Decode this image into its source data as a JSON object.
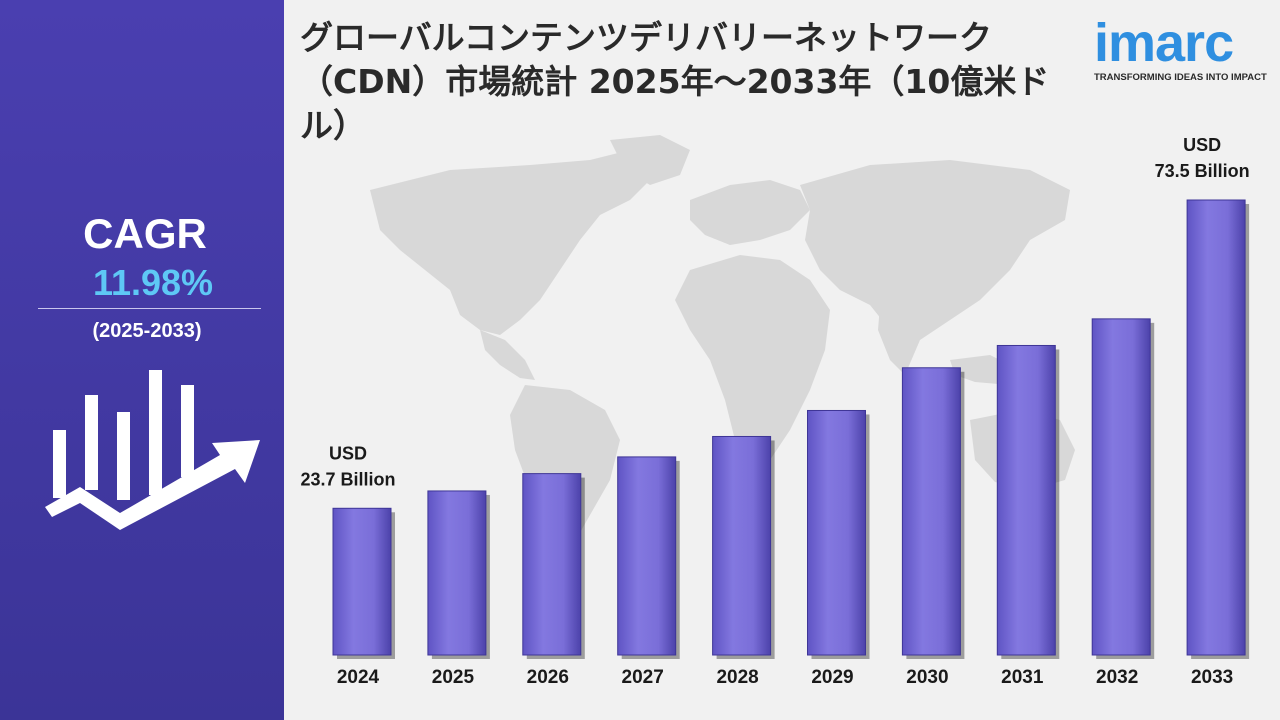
{
  "title": "グローバルコンテンツデリバリーネットワーク（CDN）市場統計 2025年～2033年（10億米ドル）",
  "logo": {
    "text": "imarc",
    "tagline": "TRANSFORMING IDEAS INTO IMPACT"
  },
  "sidebar": {
    "cagr_label": "CAGR",
    "cagr_value": "11.98%",
    "period": "(2025-2033)",
    "icon": "growth-chart-arrow-icon"
  },
  "colors": {
    "sidebar": "#4a3fb0",
    "bar": "#7b6fd9",
    "cagr_value": "#5ec8f5",
    "logo": "#2f8fe0"
  },
  "chart_data": {
    "type": "bar",
    "categories": [
      "2024",
      "2025",
      "2026",
      "2027",
      "2028",
      "2029",
      "2030",
      "2031",
      "2032",
      "2033"
    ],
    "values": [
      23.7,
      26.5,
      29.3,
      32.0,
      35.3,
      39.5,
      46.4,
      50.0,
      54.3,
      73.5
    ],
    "annotations": [
      {
        "category": "2024",
        "line1": "USD",
        "line2": "23.7 Billion"
      },
      {
        "category": "2033",
        "line1": "USD",
        "line2": "73.5 Billion"
      }
    ],
    "ylim": [
      0,
      80
    ],
    "grid": false
  }
}
